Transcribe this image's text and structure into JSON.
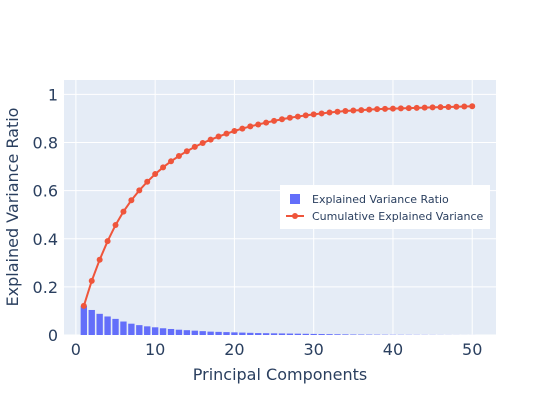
{
  "chart_data": {
    "type": "bar",
    "title": "",
    "xlabel": "Principal Components",
    "ylabel": "Explained Variance Ratio",
    "xlim": [
      -1.5,
      53
    ],
    "ylim": [
      0,
      1.06
    ],
    "xticks": [
      0,
      10,
      20,
      30,
      40,
      50
    ],
    "yticks": [
      0,
      0.2,
      0.4,
      0.6,
      0.8,
      1
    ],
    "ytick_labels": [
      "0",
      "0.2",
      "0.4",
      "0.6",
      "0.8",
      "1"
    ],
    "grid": true,
    "legend_position": "right",
    "x": [
      1,
      2,
      3,
      4,
      5,
      6,
      7,
      8,
      9,
      10,
      11,
      12,
      13,
      14,
      15,
      16,
      17,
      18,
      19,
      20,
      21,
      22,
      23,
      24,
      25,
      26,
      27,
      28,
      29,
      30,
      31,
      32,
      33,
      34,
      35,
      36,
      37,
      38,
      39,
      40,
      41,
      42,
      43,
      44,
      45,
      46,
      47,
      48,
      49,
      50
    ],
    "series": [
      {
        "name": "Explained Variance Ratio",
        "type": "bar",
        "color": "#636efa",
        "values": [
          0.121,
          0.104,
          0.088,
          0.077,
          0.067,
          0.056,
          0.047,
          0.041,
          0.036,
          0.032,
          0.028,
          0.025,
          0.022,
          0.02,
          0.018,
          0.016,
          0.014,
          0.013,
          0.012,
          0.011,
          0.01,
          0.009,
          0.008,
          0.0075,
          0.007,
          0.0065,
          0.006,
          0.0055,
          0.005,
          0.0045,
          0.004,
          0.0035,
          0.003,
          0.0025,
          0.002,
          0.0018,
          0.0016,
          0.0014,
          0.0012,
          0.001,
          0.0009,
          0.0008,
          0.0007,
          0.0006,
          0.0005,
          0.0004,
          0.0003,
          0.0002,
          0.0001,
          0.0001
        ]
      },
      {
        "name": "Cumulative Explained Variance",
        "type": "line",
        "color": "#ef553b",
        "values": [
          0.121,
          0.225,
          0.313,
          0.39,
          0.457,
          0.513,
          0.56,
          0.601,
          0.637,
          0.669,
          0.697,
          0.722,
          0.744,
          0.764,
          0.782,
          0.798,
          0.812,
          0.825,
          0.837,
          0.848,
          0.858,
          0.867,
          0.875,
          0.883,
          0.89,
          0.897,
          0.903,
          0.908,
          0.913,
          0.917,
          0.921,
          0.925,
          0.928,
          0.931,
          0.933,
          0.935,
          0.937,
          0.939,
          0.94,
          0.941,
          0.942,
          0.943,
          0.944,
          0.945,
          0.946,
          0.947,
          0.948,
          0.949,
          0.95,
          0.951
        ]
      }
    ]
  },
  "colors": {
    "plot_background": "#e5ecf6",
    "grid": "#ffffff",
    "text": "#2a3f5f"
  }
}
